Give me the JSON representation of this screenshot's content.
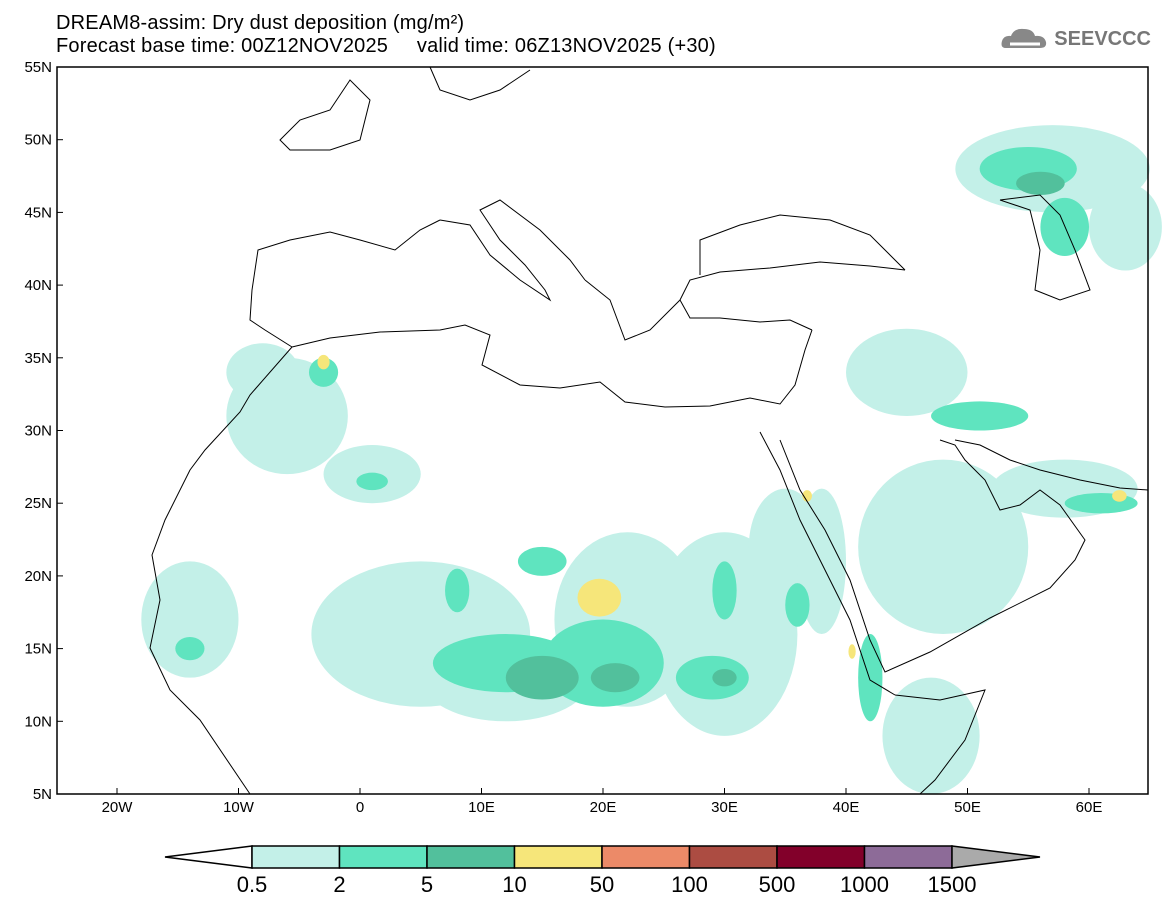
{
  "title": "DREAM8-assim: Dry dust deposition (mg/m²)",
  "subtitle": "Forecast base time: 00Z12NOV2025     valid time: 06Z13NOV2025 (+30)",
  "logo": "SEEVCCC",
  "lat_labels": [
    "55N",
    "50N",
    "45N",
    "40N",
    "35N",
    "30N",
    "25N",
    "20N",
    "15N",
    "10N",
    "5N"
  ],
  "lon_labels": [
    "20W",
    "10W",
    "0",
    "10E",
    "20E",
    "30E",
    "40E",
    "50E",
    "60E"
  ],
  "colorbar": {
    "unit": "mg/m²",
    "labels": [
      "0.5",
      "2",
      "5",
      "10",
      "50",
      "100",
      "500",
      "1000",
      "1500"
    ],
    "colors": [
      "#c3f0e8",
      "#5fe4bf",
      "#52c09c",
      "#f6e67a",
      "#ec8a68",
      "#ac4c42",
      "#82002a",
      "#8d6b98"
    ],
    "under_color": "#ffffff",
    "over_color": "#aaaaaa"
  }
}
